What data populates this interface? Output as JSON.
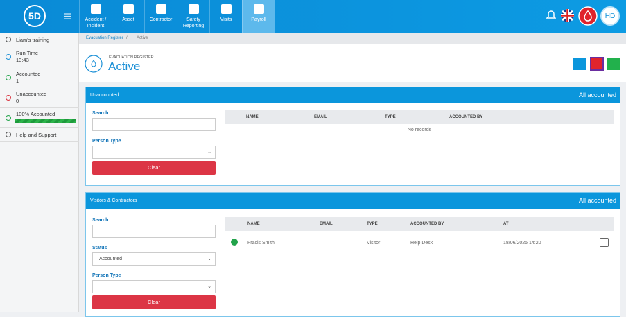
{
  "nav": {
    "logo": "5D",
    "items": [
      "Accident / Incident",
      "Asset",
      "Contractor",
      "Safety Reporting",
      "Visits",
      "Payroll"
    ],
    "avatar": "HD"
  },
  "sidebar": {
    "items": [
      {
        "label": "Liam's training"
      },
      {
        "label": "Run Time",
        "value": "13:43"
      },
      {
        "label": "Accounted",
        "value": "1"
      },
      {
        "label": "Unaccounted",
        "value": "0"
      },
      {
        "label": "100% Accounted"
      },
      {
        "label": "Help and Support"
      }
    ]
  },
  "breadcrumb": [
    "Evacuation Register",
    "Active"
  ],
  "header": {
    "subtitle": "EVACUATION REGISTER",
    "title": "Active"
  },
  "panels": [
    {
      "title": "Unaccounted",
      "status": "All accounted",
      "filters": [
        {
          "label": "Search"
        },
        {
          "label": "Person Type"
        }
      ],
      "button": "Clear",
      "columns": [
        "NAME",
        "EMAIL",
        "TYPE",
        "ACCOUNTED BY"
      ],
      "rows": [],
      "empty": "No records"
    },
    {
      "title": "Visitors & Contractors",
      "status": "All accounted",
      "filters": [
        {
          "label": "Search"
        },
        {
          "label": "Status",
          "value": "Accounted"
        },
        {
          "label": "Person Type"
        }
      ],
      "button": "Clear",
      "columns": [
        "NAME",
        "EMAIL",
        "TYPE",
        "ACCOUNTED BY",
        "AT"
      ],
      "rows": [
        [
          "Fracis Smith",
          "",
          "Visitor",
          "Help Desk",
          "18/06/2025 14:20"
        ]
      ]
    }
  ]
}
